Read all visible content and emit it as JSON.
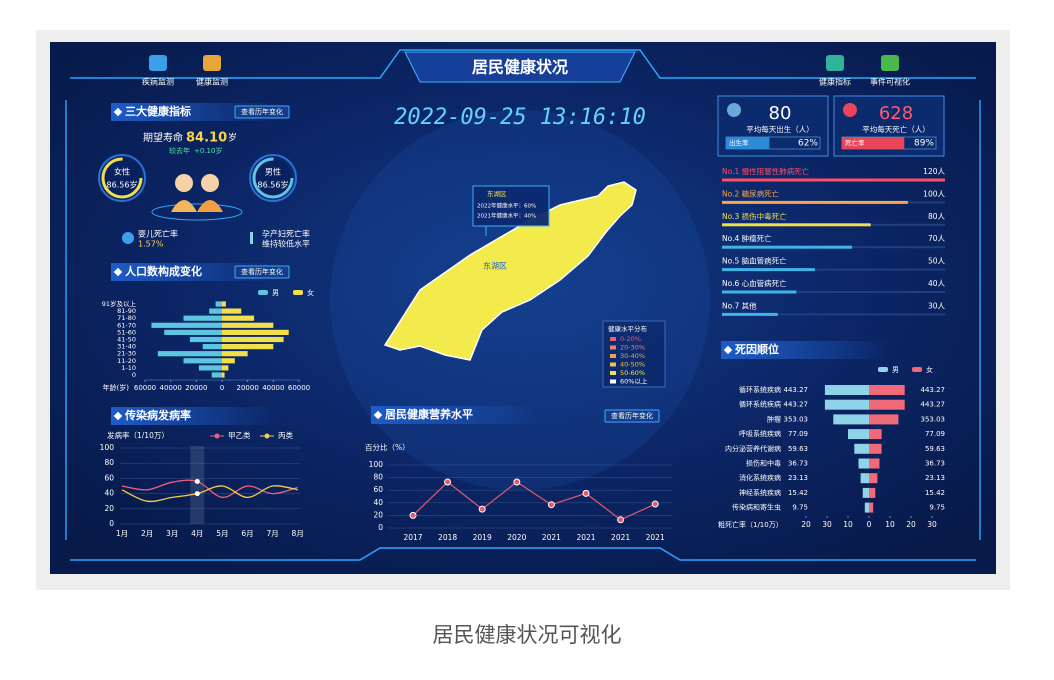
{
  "caption": "居民健康状况可视化",
  "header": {
    "title": "居民健康状况",
    "datetime": "2022-09-25 13:16:10",
    "nav_left": [
      "疾病监测",
      "健康监测"
    ],
    "nav_right": [
      "健康指标",
      "事件可视化"
    ]
  },
  "indicators": {
    "title": "三大健康指标",
    "button": "查看历年变化",
    "life_label": "期望寿命",
    "life_value": "84.10",
    "life_unit": "岁",
    "change_label": "较去年",
    "change_value": "+0.10岁",
    "female_label": "女性",
    "female_value": "86.56岁",
    "male_label": "男性",
    "male_value": "86.56岁",
    "infant_label": "婴儿死亡率",
    "infant_value": "1.57%",
    "maternal_label": "孕产妇死亡率",
    "maternal_value": "维持较低水平"
  },
  "population": {
    "title": "人口数构成变化",
    "button": "查看历年变化",
    "chart_data": {
      "type": "bar",
      "orientation": "horizontal",
      "y_axis_label": "年龄(岁)",
      "categories": [
        "91岁及以上",
        "81-90",
        "71-80",
        "61-70",
        "51-60",
        "41-50",
        "31-40",
        "21-30",
        "11-20",
        "1-10",
        "0"
      ],
      "series": [
        {
          "name": "男",
          "color": "#5cc6e0",
          "values": [
            -5000,
            -10000,
            -30000,
            -55000,
            -45000,
            -25000,
            -15000,
            -50000,
            -30000,
            -18000,
            -8000
          ]
        },
        {
          "name": "女",
          "color": "#f2e04a",
          "values": [
            3000,
            15000,
            25000,
            40000,
            52000,
            48000,
            40000,
            20000,
            10000,
            5000,
            2000
          ]
        }
      ],
      "xlim": [
        -60000,
        60000
      ],
      "xticks": [
        {
          "value": -60000,
          "label": "60000"
        },
        {
          "value": -40000,
          "label": "40000"
        },
        {
          "value": -20000,
          "label": "20000"
        },
        0,
        20000,
        40000,
        60000
      ]
    }
  },
  "infectious": {
    "title": "传染病发病率",
    "chart_data": {
      "type": "line",
      "y_axis_label": "发病率（1/10万）",
      "categories": [
        "1月",
        "2月",
        "3月",
        "4月",
        "5月",
        "6月",
        "7月",
        "8月"
      ],
      "series": [
        {
          "name": "甲乙类",
          "color": "#f0607a",
          "values": [
            50,
            45,
            55,
            56,
            35,
            50,
            40,
            48
          ]
        },
        {
          "name": "丙类",
          "color": "#f2d04a",
          "values": [
            45,
            30,
            35,
            40,
            50,
            35,
            50,
            45
          ]
        }
      ],
      "ylim": [
        0,
        100
      ],
      "yticks": [
        0,
        20,
        40,
        60,
        80,
        100
      ]
    }
  },
  "map": {
    "region": "东湖区",
    "tooltip": {
      "title": "东湖区",
      "lines": [
        "2022年健康水平：60%",
        "2021年健康水平：40%"
      ]
    },
    "legend": {
      "title": "健康水平分布",
      "items": [
        {
          "label": "0-20%",
          "color": "#e95f6b"
        },
        {
          "label": "20-30%",
          "color": "#ec8260"
        },
        {
          "label": "30-40%",
          "color": "#f0a050"
        },
        {
          "label": "40-50%",
          "color": "#f3c042"
        },
        {
          "label": "50-60%",
          "color": "#f6e04a"
        },
        {
          "label": "60%以上",
          "color": "#ffffff"
        }
      ]
    }
  },
  "nutrition": {
    "title": "居民健康营养水平",
    "button": "查看历年变化",
    "chart_data": {
      "type": "line",
      "y_axis_label": "百分比（%）",
      "categories": [
        "2017",
        "2018",
        "2019",
        "2020",
        "2021",
        "2021",
        "2021",
        "2021"
      ],
      "values": [
        20,
        73,
        30,
        73,
        37,
        55,
        13,
        38
      ],
      "color": "#e05a72",
      "ylim": [
        0,
        100
      ],
      "yticks": [
        0,
        20,
        40,
        60,
        80,
        100
      ]
    }
  },
  "birth": {
    "value": 80,
    "label": "平均每天出生（人）",
    "rate_label": "出生率",
    "rate": 62,
    "rate_text": "62%"
  },
  "death": {
    "value": 628,
    "label": "平均每天死亡（人）",
    "rate_label": "死亡率",
    "rate": 89,
    "rate_text": "89%"
  },
  "causes": {
    "chart_data": {
      "type": "bar",
      "orientation": "horizontal",
      "categories": [
        "No.1  慢性阻塞性肺病死亡",
        "No.2  糖尿病死亡",
        "No.3  损伤中毒死亡",
        "No.4  肿瘤死亡",
        "No.5  脑血管病死亡",
        "No.6  心血管病死亡",
        "No.7  其他"
      ],
      "values": [
        120,
        100,
        80,
        70,
        50,
        40,
        30
      ],
      "value_labels": [
        "120人",
        "100人",
        "80人",
        "70人",
        "50人",
        "40人",
        "30人"
      ],
      "colors": [
        "#ff4d6a",
        "#f7a74a",
        "#f2e04a",
        "#3fb4e8",
        "#3fb4e8",
        "#3fb4e8",
        "#3fb4e8"
      ],
      "xlim": [
        0,
        120
      ]
    }
  },
  "ranking": {
    "title": "死因顺位",
    "chart_data": {
      "type": "bar",
      "orientation": "horizontal",
      "x_axis_label": "粗死亡率（1/10万）",
      "categories": [
        "循环系统疾病",
        "循环系统疾病",
        "肿瘤",
        "呼吸系统疾病",
        "内分泌营养代谢病",
        "损伤和中毒",
        "消化系统疾病",
        "神经系统疾病",
        "传染病和寄生虫"
      ],
      "rates": [
        "443.27",
        "443.27",
        "353.03",
        "77.09",
        "59.63",
        "36.73",
        "23.13",
        "15.42",
        "9.75"
      ],
      "series": [
        {
          "name": "男",
          "color": "#8fd3e8",
          "values": [
            -21,
            -21,
            -17,
            -10,
            -7,
            -5,
            -4,
            -3,
            -2
          ]
        },
        {
          "name": "女",
          "color": "#f06a78",
          "values": [
            17,
            17,
            14,
            6,
            6,
            5,
            4,
            3,
            2
          ]
        }
      ],
      "xlim": [
        -30,
        30
      ],
      "xticks": [
        {
          "value": -30,
          "label": "20"
        },
        {
          "value": -20,
          "label": "30"
        },
        {
          "value": -10,
          "label": "10"
        },
        0,
        10,
        20,
        30
      ]
    }
  }
}
